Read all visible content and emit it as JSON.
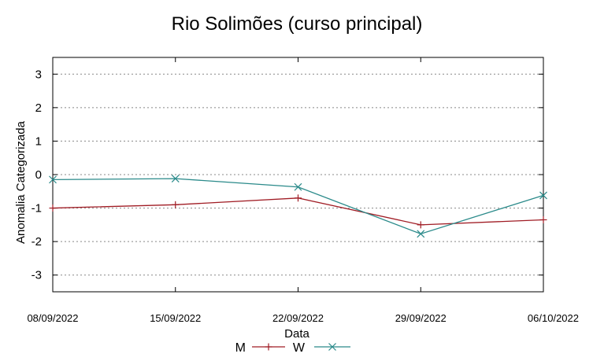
{
  "chart_data": {
    "type": "line",
    "title": "Rio Solimões (curso principal)",
    "xlabel": "Data",
    "ylabel": "Anomalia Categorizada",
    "categories": [
      "08/09/2022",
      "15/09/2022",
      "22/09/2022",
      "29/09/2022",
      "06/10/2022"
    ],
    "yticks": [
      "3",
      "2",
      "1",
      "0",
      "-1",
      "-2",
      "-3"
    ],
    "ylim": [
      -3.5,
      3.5
    ],
    "grid": "horizontal dotted",
    "legend_position": "bottom-center",
    "series": [
      {
        "name": "M",
        "values": [
          -1.0,
          -0.9,
          -0.7,
          -1.5,
          -1.35
        ],
        "color": "#a01c24",
        "marker": "plus"
      },
      {
        "name": "W",
        "values": [
          -0.15,
          -0.12,
          -0.37,
          -1.77,
          -0.62
        ],
        "color": "#2a8a8a",
        "marker": "cross"
      }
    ]
  }
}
